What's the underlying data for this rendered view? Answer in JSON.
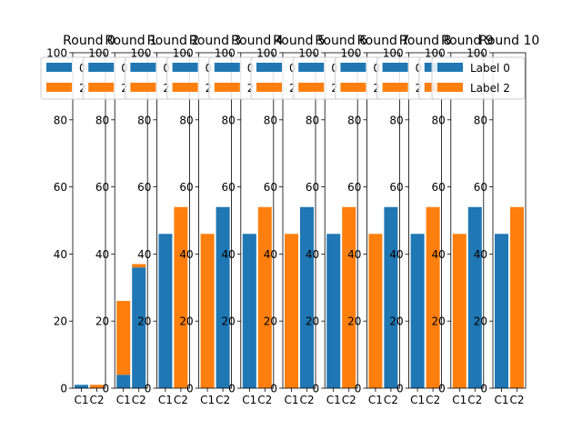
{
  "chart_data": {
    "type": "bar",
    "stacked": true,
    "ylim": [
      0,
      100
    ],
    "yticks": [
      0,
      20,
      40,
      60,
      80,
      100
    ],
    "categories": [
      "C1",
      "C2"
    ],
    "colors": {
      "Label 0": "#1f77b4",
      "Label 2": "#ff7f0e"
    },
    "legend_position": "top-right",
    "panels": [
      {
        "title": "Round 0",
        "legend": [
          "0",
          "2"
        ],
        "series": [
          {
            "name": "0",
            "values": [
              1,
              0
            ]
          },
          {
            "name": "2",
            "values": [
              0,
              1
            ]
          }
        ]
      },
      {
        "title": "Round 1",
        "legend": [
          "0",
          "2"
        ],
        "series": [
          {
            "name": "0",
            "values": [
              4,
              36
            ]
          },
          {
            "name": "2",
            "values": [
              22,
              1
            ]
          }
        ]
      },
      {
        "title": "Round 2",
        "legend": [
          "0",
          "2"
        ],
        "series": [
          {
            "name": "0",
            "values": [
              46,
              0
            ]
          },
          {
            "name": "2",
            "values": [
              0,
              54
            ]
          }
        ]
      },
      {
        "title": "Round 3",
        "legend": [
          "0",
          "2"
        ],
        "series": [
          {
            "name": "0",
            "values": [
              0,
              54
            ]
          },
          {
            "name": "2",
            "values": [
              46,
              0
            ]
          }
        ]
      },
      {
        "title": "Round 4",
        "legend": [
          "0",
          "2"
        ],
        "series": [
          {
            "name": "0",
            "values": [
              46,
              0
            ]
          },
          {
            "name": "2",
            "values": [
              0,
              54
            ]
          }
        ]
      },
      {
        "title": "Round 5",
        "legend": [
          "0",
          "2"
        ],
        "series": [
          {
            "name": "0",
            "values": [
              0,
              54
            ]
          },
          {
            "name": "2",
            "values": [
              46,
              0
            ]
          }
        ]
      },
      {
        "title": "Round 6",
        "legend": [
          "0",
          "2"
        ],
        "series": [
          {
            "name": "0",
            "values": [
              46,
              0
            ]
          },
          {
            "name": "2",
            "values": [
              0,
              54
            ]
          }
        ]
      },
      {
        "title": "Round 7",
        "legend": [
          "0",
          "2"
        ],
        "series": [
          {
            "name": "0",
            "values": [
              0,
              54
            ]
          },
          {
            "name": "2",
            "values": [
              46,
              0
            ]
          }
        ]
      },
      {
        "title": "Round 8",
        "legend": [
          "0",
          "2"
        ],
        "series": [
          {
            "name": "0",
            "values": [
              46,
              0
            ]
          },
          {
            "name": "2",
            "values": [
              0,
              54
            ]
          }
        ]
      },
      {
        "title": "Round 9",
        "legend": [
          "0",
          "2"
        ],
        "series": [
          {
            "name": "0",
            "values": [
              0,
              54
            ]
          },
          {
            "name": "2",
            "values": [
              46,
              0
            ]
          }
        ]
      },
      {
        "title": "Round 10",
        "legend": [
          "Label 0",
          "Label 2"
        ],
        "series": [
          {
            "name": "Label 0",
            "values": [
              46,
              0
            ]
          },
          {
            "name": "Label 2",
            "values": [
              0,
              54
            ]
          }
        ]
      }
    ]
  }
}
